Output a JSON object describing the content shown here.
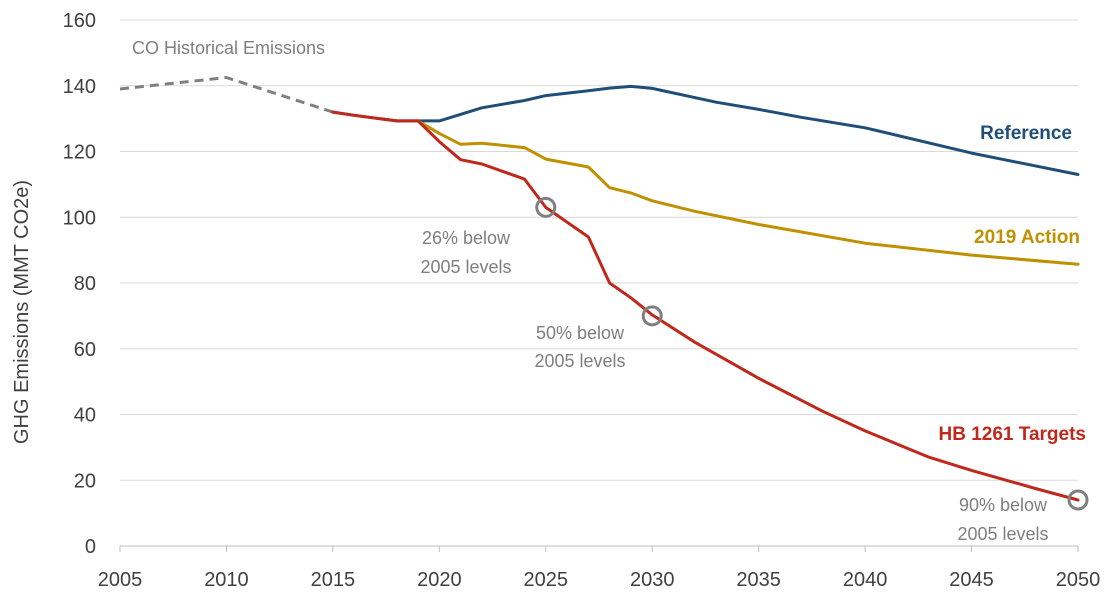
{
  "chart_data": {
    "type": "line",
    "title": "",
    "xlabel": "",
    "ylabel": "GHG Emissions (MMT CO2e)",
    "xlim": [
      2005,
      2050
    ],
    "ylim": [
      0,
      160
    ],
    "x_ticks": [
      "2005",
      "2010",
      "2015",
      "2020",
      "2025",
      "2030",
      "2035",
      "2040",
      "2045",
      "2050"
    ],
    "y_ticks": [
      "0",
      "20",
      "40",
      "60",
      "80",
      "100",
      "120",
      "140",
      "160"
    ],
    "grid": true,
    "series": [
      {
        "name": "CO Historical Emissions",
        "color": "#808080",
        "dashed": true,
        "x": [
          2005,
          2010,
          2015
        ],
        "y": [
          139,
          142.5,
          132
        ]
      },
      {
        "name": "Reference",
        "color": "#1f4e79",
        "x": [
          2015,
          2016,
          2018,
          2019,
          2020,
          2022,
          2024,
          2025,
          2027,
          2028,
          2029,
          2030,
          2033,
          2035,
          2037,
          2040,
          2045,
          2050
        ],
        "y": [
          132,
          131,
          129.3,
          129.3,
          129.3,
          133.3,
          135.5,
          137,
          138.5,
          139.3,
          139.8,
          139.2,
          135,
          132.8,
          130.4,
          127.2,
          119.5,
          113
        ]
      },
      {
        "name": "2019 Action",
        "color": "#bf9000",
        "x": [
          2019,
          2020,
          2021,
          2022,
          2024,
          2025,
          2027,
          2028,
          2029,
          2030,
          2032,
          2035,
          2040,
          2045,
          2050
        ],
        "y": [
          129.3,
          125.5,
          122.2,
          122.5,
          121.2,
          117.7,
          115.3,
          109,
          107.4,
          105,
          101.8,
          97.8,
          92.1,
          88.5,
          85.7
        ]
      },
      {
        "name": "HB 1261 Targets",
        "color": "#c0281c",
        "x": [
          2015,
          2016,
          2018,
          2019,
          2020,
          2021,
          2022,
          2024,
          2025,
          2027,
          2028,
          2029,
          2030,
          2032,
          2035,
          2038,
          2040,
          2043,
          2045,
          2048,
          2050
        ],
        "y": [
          132,
          131,
          129.3,
          129.3,
          123,
          117.5,
          116.2,
          111.6,
          103,
          94,
          80,
          75.5,
          70.3,
          62,
          51,
          41,
          35,
          27,
          23,
          17.5,
          14
        ]
      }
    ],
    "markers": [
      {
        "x": 2025,
        "y": 103,
        "label_lines": [
          "26% below",
          "2005 levels"
        ]
      },
      {
        "x": 2030,
        "y": 70,
        "label_lines": [
          "50% below",
          "2005 levels"
        ]
      },
      {
        "x": 2050,
        "y": 14,
        "label_lines": [
          "90% below",
          "2005 levels"
        ]
      }
    ]
  }
}
